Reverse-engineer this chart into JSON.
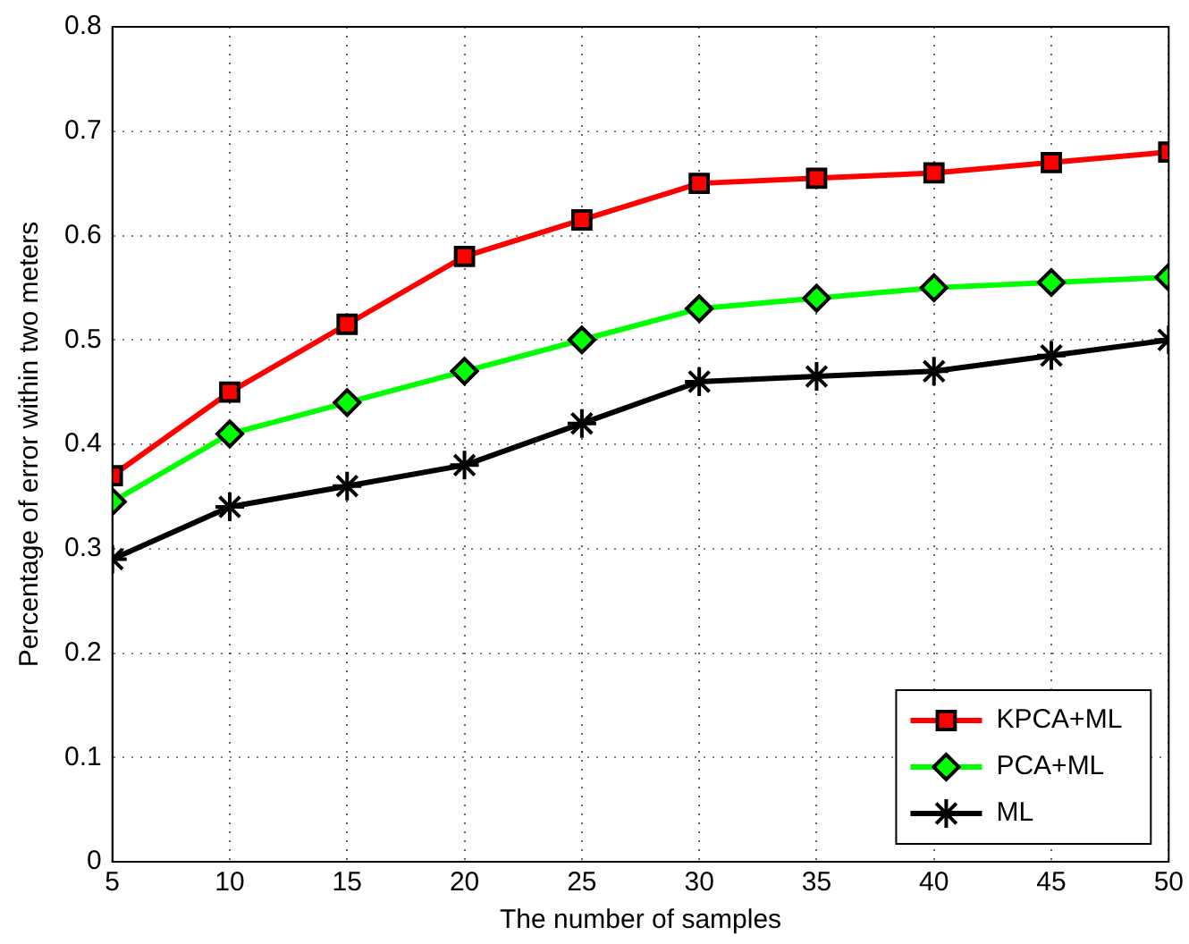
{
  "chart_data": {
    "type": "line",
    "xlabel": "The number of samples",
    "ylabel": "Percentage of error within two meters",
    "x": [
      5,
      10,
      15,
      20,
      25,
      30,
      35,
      40,
      45,
      50
    ],
    "series": [
      {
        "name": "KPCA+ML",
        "color": "#ff0000",
        "marker": "square",
        "values": [
          0.37,
          0.45,
          0.515,
          0.58,
          0.615,
          0.65,
          0.655,
          0.66,
          0.67,
          0.68
        ]
      },
      {
        "name": "PCA+ML",
        "color": "#00ff00",
        "marker": "diamond",
        "values": [
          0.345,
          0.41,
          0.44,
          0.47,
          0.5,
          0.53,
          0.54,
          0.55,
          0.555,
          0.56
        ]
      },
      {
        "name": "ML",
        "color": "#000000",
        "marker": "cross",
        "values": [
          0.29,
          0.34,
          0.36,
          0.38,
          0.42,
          0.46,
          0.465,
          0.47,
          0.485,
          0.5
        ]
      }
    ],
    "xlim": [
      5,
      50
    ],
    "xticks": [
      5,
      10,
      15,
      20,
      25,
      30,
      35,
      40,
      45,
      50
    ],
    "ylim": [
      0,
      0.8
    ],
    "yticks": [
      0,
      0.1,
      0.2,
      0.3,
      0.4,
      0.5,
      0.6,
      0.7,
      0.8
    ],
    "grid": true,
    "legend": "bottom right",
    "line_style": "solid"
  }
}
